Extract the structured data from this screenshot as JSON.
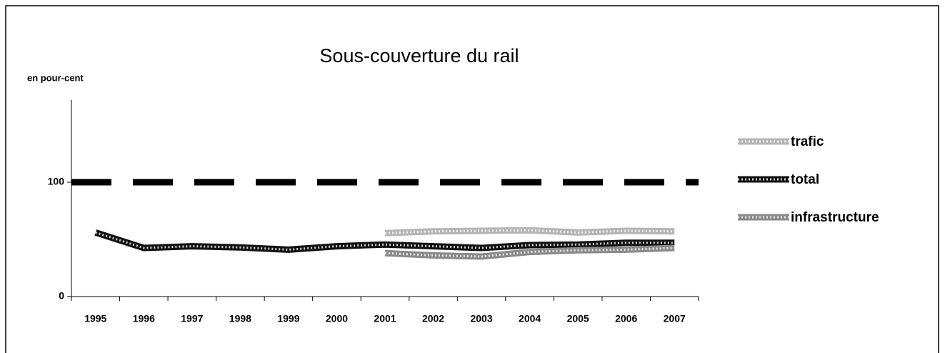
{
  "chart_data": {
    "type": "line",
    "title": "Sous-couverture du rail",
    "y_label": "en pour-cent",
    "categories": [
      "1995",
      "1996",
      "1997",
      "1998",
      "1999",
      "2000",
      "2001",
      "2002",
      "2003",
      "2004",
      "2005",
      "2006",
      "2007"
    ],
    "series": [
      {
        "name": "trafic",
        "color": "#b5b5b5",
        "values": [
          null,
          null,
          null,
          null,
          null,
          null,
          55.5,
          57,
          57.5,
          58,
          56,
          57.5,
          57
        ]
      },
      {
        "name": "total",
        "color": "#111111",
        "values": [
          56,
          42.5,
          44,
          43,
          41,
          44,
          45.5,
          44,
          42.5,
          45,
          45.5,
          47,
          47
        ]
      },
      {
        "name": "infrastructure",
        "color": "#8a8a8a",
        "values": [
          null,
          null,
          null,
          null,
          null,
          null,
          38,
          36,
          35,
          39,
          40.5,
          41,
          42.5
        ]
      }
    ],
    "reference_line": 100,
    "ylim": [
      0,
      172
    ],
    "yticks": [
      0,
      100
    ],
    "legend": "right"
  }
}
